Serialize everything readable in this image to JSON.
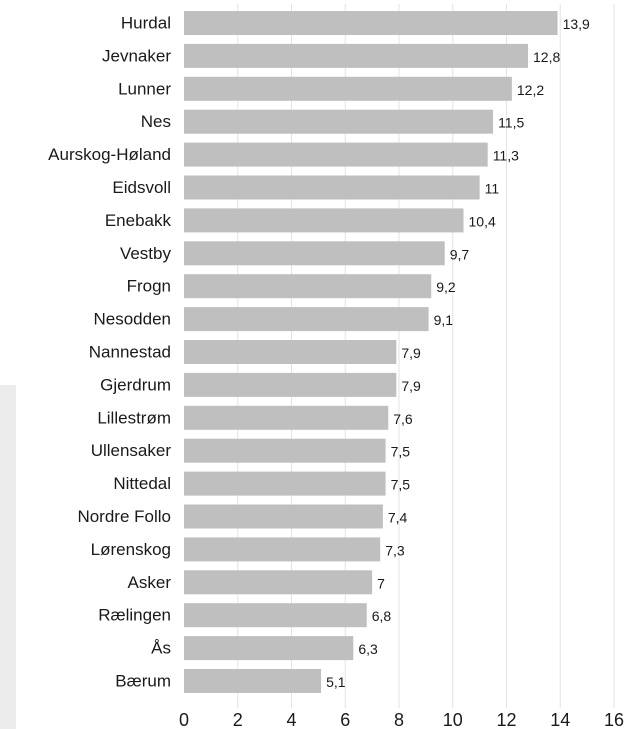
{
  "chart_data": {
    "type": "bar",
    "orientation": "horizontal",
    "title": "",
    "xlabel": "",
    "ylabel": "",
    "categories": [
      "Hurdal",
      "Jevnaker",
      "Lunner",
      "Nes",
      "Aurskog-Høland",
      "Eidsvoll",
      "Enebakk",
      "Vestby",
      "Frogn",
      "Nesodden",
      "Nannestad",
      "Gjerdrum",
      "Lillestrøm",
      "Ullensaker",
      "Nittedal",
      "Nordre Follo",
      "Lørenskog",
      "Asker",
      "Rælingen",
      "Ås",
      "Bærum"
    ],
    "values": [
      13.9,
      12.8,
      12.2,
      11.5,
      11.3,
      11,
      10.4,
      9.7,
      9.2,
      9.1,
      7.9,
      7.9,
      7.6,
      7.5,
      7.5,
      7.4,
      7.3,
      7,
      6.8,
      6.3,
      5.1
    ],
    "value_labels": [
      "13,9",
      "12,8",
      "12,2",
      "11,5",
      "11,3",
      "11",
      "10,4",
      "9,7",
      "9,2",
      "9,1",
      "7,9",
      "7,9",
      "7,6",
      "7,5",
      "7,5",
      "7,4",
      "7,3",
      "7",
      "6,8",
      "6,3",
      "5,1"
    ],
    "xlim": [
      0,
      16
    ],
    "xticks": [
      0,
      2,
      4,
      6,
      8,
      10,
      12,
      14,
      16
    ],
    "grid": "vertical",
    "legend": "none",
    "bar_color": "#c0bfc0",
    "grid_color": "#e3e3e3",
    "text_color": "#1a1a1a"
  }
}
